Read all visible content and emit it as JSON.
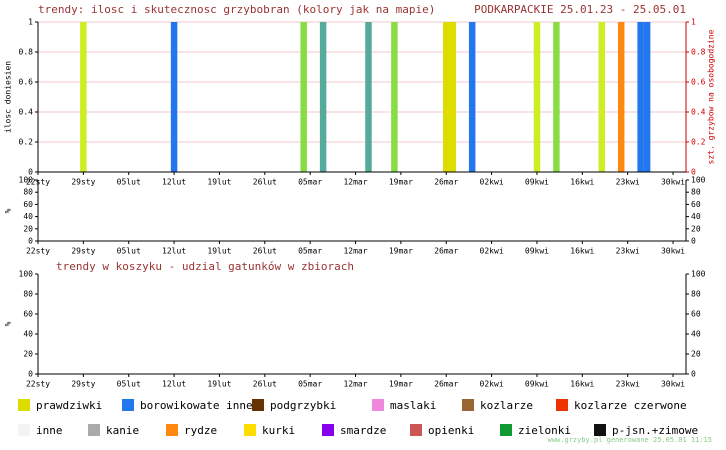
{
  "chart_data": [
    {
      "type": "bar",
      "title": "trendy: ilosc i skutecznosc grzybobran (kolory jak na mapie)",
      "subtitle": "PODKARPACKIE 25.01.23 - 25.05.01",
      "ylabel": "ilosc doniesien",
      "y2label": "szt. grzybow na osobogodzine",
      "xlim": [
        0,
        100
      ],
      "xticks": [
        {
          "value": 0,
          "label": "22sty"
        },
        {
          "value": 7,
          "label": "29sty"
        },
        {
          "value": 14,
          "label": "05lut"
        },
        {
          "value": 21,
          "label": "12lut"
        },
        {
          "value": 28,
          "label": "19lut"
        },
        {
          "value": 35,
          "label": "26lut"
        },
        {
          "value": 42,
          "label": "05mar"
        },
        {
          "value": 49,
          "label": "12mar"
        },
        {
          "value": 56,
          "label": "19mar"
        },
        {
          "value": 63,
          "label": "26mar"
        },
        {
          "value": 70,
          "label": "02kwi"
        },
        {
          "value": 77,
          "label": "09kwi"
        },
        {
          "value": 84,
          "label": "16kwi"
        },
        {
          "value": 91,
          "label": "23kwi"
        },
        {
          "value": 98,
          "label": "30kwi"
        }
      ],
      "ylim": [
        0,
        1
      ],
      "yticks": [
        0,
        0.2,
        0.4,
        0.6,
        0.8,
        1
      ],
      "y2lim": [
        0,
        1
      ],
      "y2ticks": [
        0,
        0.2,
        0.4,
        0.6,
        0.8,
        1
      ],
      "y2color": "#cc0000",
      "grid": true,
      "series": [
        {
          "color": "#ccee22",
          "x": [
            7,
            77,
            87
          ],
          "values": [
            1,
            1,
            1
          ]
        },
        {
          "color": "#2277ee",
          "x": [
            21,
            67,
            93,
            94
          ],
          "values": [
            1,
            1,
            1,
            1
          ]
        },
        {
          "color": "#88dd44",
          "x": [
            41,
            55,
            80
          ],
          "values": [
            1,
            1,
            1
          ]
        },
        {
          "color": "#55aa99",
          "x": [
            44,
            51
          ],
          "values": [
            1,
            1
          ]
        },
        {
          "color": "#dddd00",
          "x": [
            63,
            64
          ],
          "values": [
            1,
            1
          ]
        },
        {
          "color": "#ff8811",
          "x": [
            90
          ],
          "values": [
            1
          ]
        }
      ]
    },
    {
      "type": "bar",
      "ylabel": "%",
      "xlim": [
        0,
        100
      ],
      "xticks": [
        {
          "value": 0,
          "label": "22sty"
        },
        {
          "value": 7,
          "label": "29sty"
        },
        {
          "value": 14,
          "label": "05lut"
        },
        {
          "value": 21,
          "label": "12lut"
        },
        {
          "value": 28,
          "label": "19lut"
        },
        {
          "value": 35,
          "label": "26lut"
        },
        {
          "value": 42,
          "label": "05mar"
        },
        {
          "value": 49,
          "label": "12mar"
        },
        {
          "value": 56,
          "label": "19mar"
        },
        {
          "value": 63,
          "label": "26mar"
        },
        {
          "value": 70,
          "label": "02kwi"
        },
        {
          "value": 77,
          "label": "09kwi"
        },
        {
          "value": 84,
          "label": "16kwi"
        },
        {
          "value": 91,
          "label": "23kwi"
        },
        {
          "value": 98,
          "label": "30kwi"
        }
      ],
      "ylim": [
        0,
        100
      ],
      "yticks": [
        0,
        20,
        40,
        60,
        80,
        100
      ],
      "y2lim": [
        0,
        100
      ],
      "y2ticks": [
        0,
        20,
        40,
        60,
        80,
        100
      ]
    },
    {
      "type": "bar",
      "title": "trendy w koszyku - udzial gatunków w zbiorach",
      "ylabel": "%",
      "xlim": [
        0,
        100
      ],
      "xticks": [
        {
          "value": 0,
          "label": "22sty"
        },
        {
          "value": 7,
          "label": "29sty"
        },
        {
          "value": 14,
          "label": "05lut"
        },
        {
          "value": 21,
          "label": "12lut"
        },
        {
          "value": 28,
          "label": "19lut"
        },
        {
          "value": 35,
          "label": "26lut"
        },
        {
          "value": 42,
          "label": "05mar"
        },
        {
          "value": 49,
          "label": "12mar"
        },
        {
          "value": 56,
          "label": "19mar"
        },
        {
          "value": 63,
          "label": "26mar"
        },
        {
          "value": 70,
          "label": "02kwi"
        },
        {
          "value": 77,
          "label": "09kwi"
        },
        {
          "value": 84,
          "label": "16kwi"
        },
        {
          "value": 91,
          "label": "23kwi"
        },
        {
          "value": 98,
          "label": "30kwi"
        }
      ],
      "ylim": [
        0,
        100
      ],
      "yticks": [
        0,
        20,
        40,
        60,
        80,
        100
      ],
      "y2lim": [
        0,
        100
      ],
      "y2ticks": [
        0,
        20,
        40,
        60,
        80,
        100
      ]
    }
  ],
  "legend": [
    {
      "name": "prawdziwki",
      "color": "#dddd00"
    },
    {
      "name": "borowikowate inne",
      "color": "#2277ee"
    },
    {
      "name": "podgrzybki",
      "color": "#663300"
    },
    {
      "name": "maslaki",
      "color": "#ee88dd"
    },
    {
      "name": "kozlarze",
      "color": "#996633"
    },
    {
      "name": "kozlarze czerwone",
      "color": "#ee3300"
    },
    {
      "name": "inne",
      "color": "#f4f4f4"
    },
    {
      "name": "kanie",
      "color": "#aaaaaa"
    },
    {
      "name": "rydze",
      "color": "#ff8811"
    },
    {
      "name": "kurki",
      "color": "#ffdd00"
    },
    {
      "name": "smardze",
      "color": "#8800ee"
    },
    {
      "name": "opienki",
      "color": "#cc5555"
    },
    {
      "name": "zielonki",
      "color": "#119933"
    },
    {
      "name": "p-jsn.+zimowe",
      "color": "#111111"
    }
  ],
  "footer": "www.grzyby.pl generowane 25.05.01  11:15"
}
